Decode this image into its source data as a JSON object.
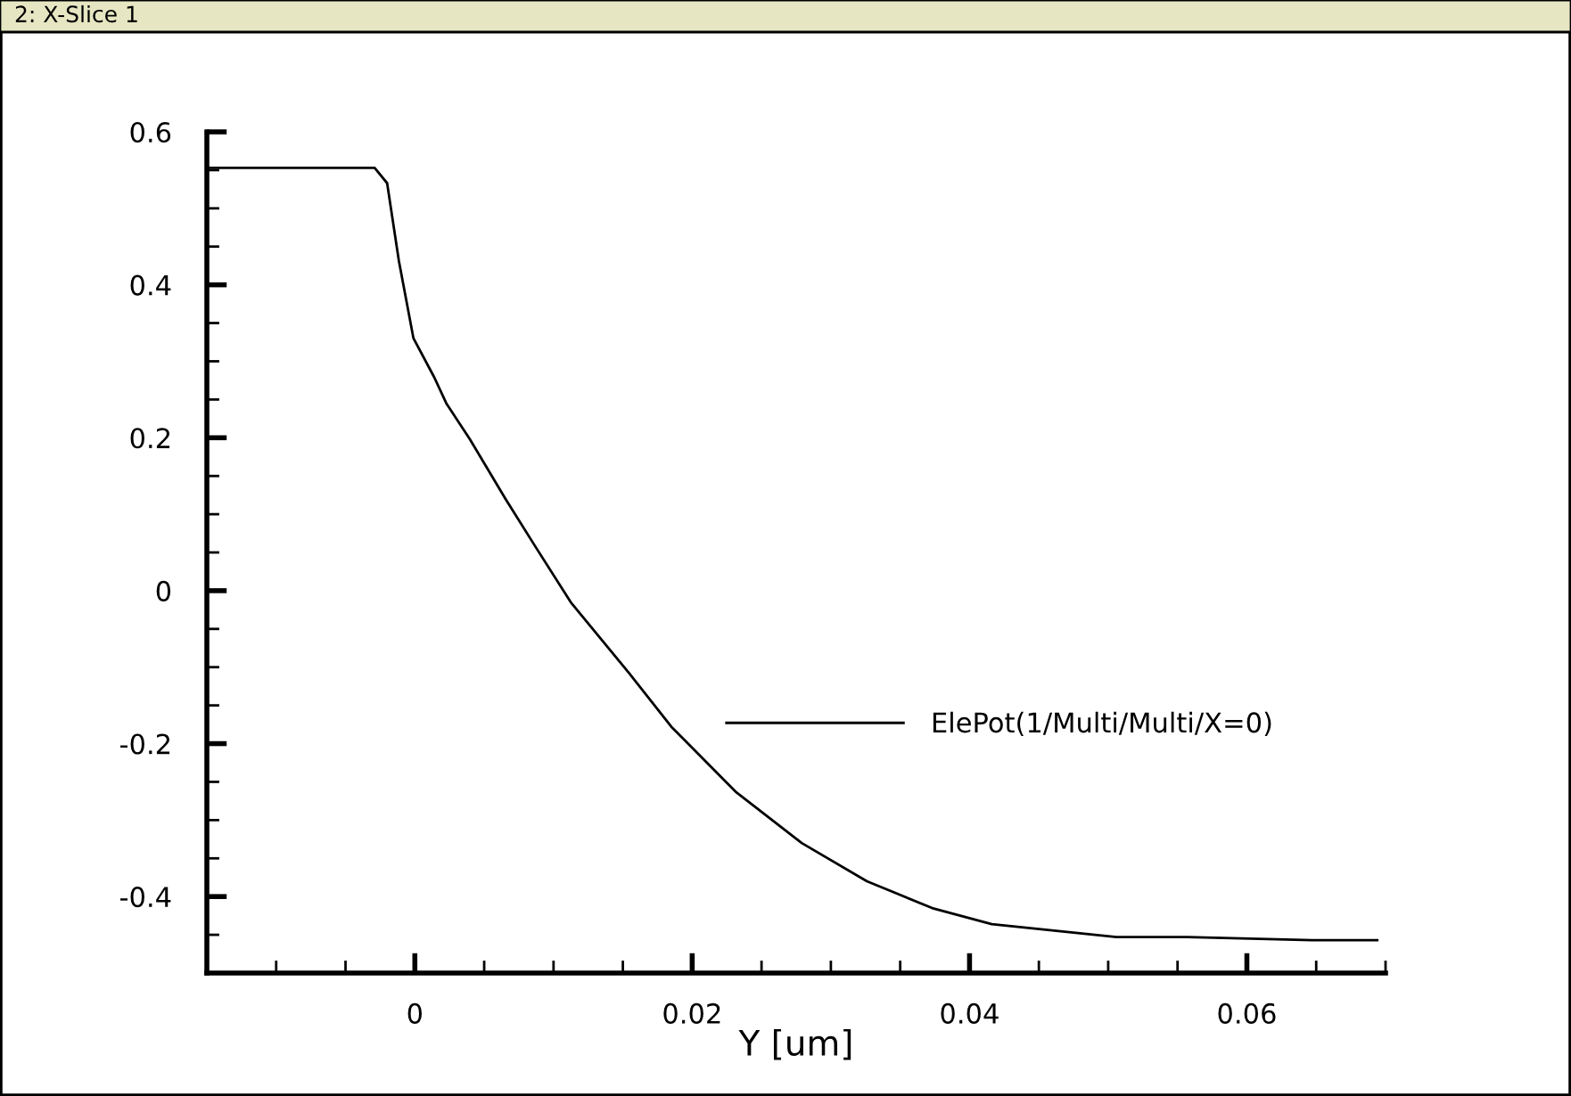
{
  "chart_data": {
    "type": "line",
    "title": "2: X-Slice 1",
    "xlabel": "Y [um]",
    "xlim": [
      -0.015,
      0.07
    ],
    "xticks": [
      0,
      0.02,
      0.04,
      0.06
    ],
    "ylim": [
      -0.5,
      0.6
    ],
    "yticks": [
      -0.4,
      -0.2,
      0,
      0.2,
      0.4,
      0.6
    ],
    "grid": false,
    "legend": "right",
    "marker": "none",
    "line_style": "solid",
    "series": [
      {
        "name": "ElePot(1/Multi/Multi/X=0)",
        "color": "#000000",
        "x": [
          -0.015,
          -0.0029,
          -0.002,
          -0.00115,
          -0.0001,
          0.0014,
          0.00227,
          0.00397,
          0.00654,
          0.00868,
          0.01124,
          0.0155,
          0.0185,
          0.0232,
          0.0279,
          0.0326,
          0.0373,
          0.0416,
          0.0506,
          0.0557,
          0.0647,
          0.0694
        ],
        "values": [
          0.553,
          0.553,
          0.533,
          0.431,
          0.33,
          0.279,
          0.245,
          0.198,
          0.12,
          0.058,
          -0.015,
          -0.109,
          -0.178,
          -0.264,
          -0.33,
          -0.38,
          -0.415,
          -0.436,
          -0.453,
          -0.453,
          -0.457,
          -0.457
        ]
      }
    ]
  }
}
